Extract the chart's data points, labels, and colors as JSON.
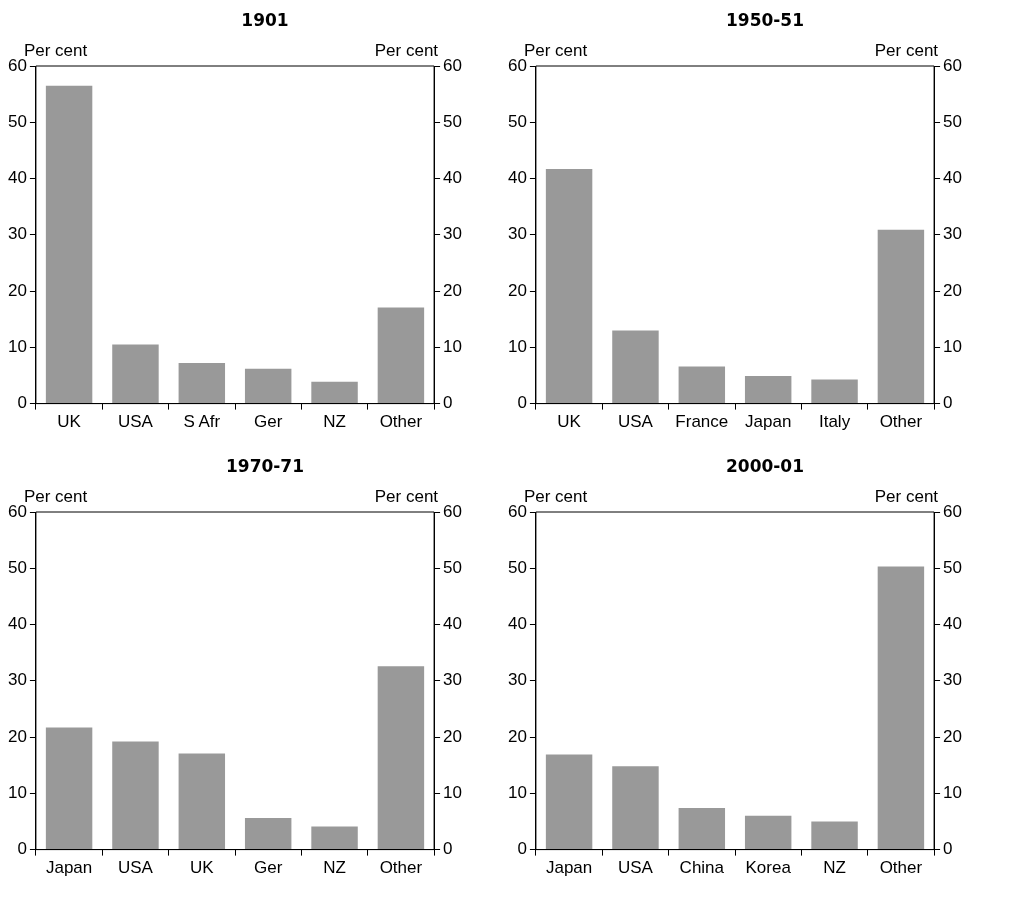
{
  "chart_data": [
    {
      "type": "bar",
      "title": "1901",
      "ylabel": "Per cent",
      "y2label": "Per cent",
      "categories": [
        "UK",
        "USA",
        "S Afr",
        "Ger",
        "NZ",
        "Other"
      ],
      "values": [
        56.5,
        10.5,
        7.2,
        6.2,
        3.9,
        17.1
      ],
      "color": "#999999",
      "ylim": [
        0,
        60
      ],
      "yticks": [
        0,
        10,
        20,
        30,
        40,
        50,
        60
      ],
      "y2lim": [
        0,
        60
      ],
      "y2ticks": [
        0,
        10,
        20,
        30,
        40,
        50,
        60
      ],
      "grid": false,
      "legend": false
    },
    {
      "type": "bar",
      "title": "1950-51",
      "ylabel": "Per cent",
      "y2label": "Per cent",
      "categories": [
        "UK",
        "USA",
        "France",
        "Japan",
        "Italy",
        "Other"
      ],
      "values": [
        41.7,
        13,
        6.6,
        4.9,
        4.3,
        30.9
      ],
      "color": "#999999",
      "ylim": [
        0,
        60
      ],
      "yticks": [
        0,
        10,
        20,
        30,
        40,
        50,
        60
      ],
      "y2lim": [
        0,
        60
      ],
      "y2ticks": [
        0,
        10,
        20,
        30,
        40,
        50,
        60
      ],
      "grid": false,
      "legend": false
    },
    {
      "type": "bar",
      "title": "1970-71",
      "ylabel": "Per cent",
      "y2label": "Per cent",
      "categories": [
        "Japan",
        "USA",
        "UK",
        "Ger",
        "NZ",
        "Other"
      ],
      "values": [
        21.7,
        19.2,
        17.1,
        5.6,
        4.1,
        32.6
      ],
      "color": "#999999",
      "ylim": [
        0,
        60
      ],
      "yticks": [
        0,
        10,
        20,
        30,
        40,
        50,
        60
      ],
      "y2lim": [
        0,
        60
      ],
      "y2ticks": [
        0,
        10,
        20,
        30,
        40,
        50,
        60
      ],
      "grid": false,
      "legend": false
    },
    {
      "type": "bar",
      "title": "2000-01",
      "ylabel": "Per cent",
      "y2label": "Per cent",
      "categories": [
        "Japan",
        "USA",
        "China",
        "Korea",
        "NZ",
        "Other"
      ],
      "values": [
        16.9,
        14.8,
        7.4,
        6.0,
        5.0,
        50.3
      ],
      "color": "#999999",
      "ylim": [
        0,
        60
      ],
      "yticks": [
        0,
        10,
        20,
        30,
        40,
        50,
        60
      ],
      "y2lim": [
        0,
        60
      ],
      "y2ticks": [
        0,
        10,
        20,
        30,
        40,
        50,
        60
      ],
      "grid": false,
      "legend": false
    }
  ]
}
